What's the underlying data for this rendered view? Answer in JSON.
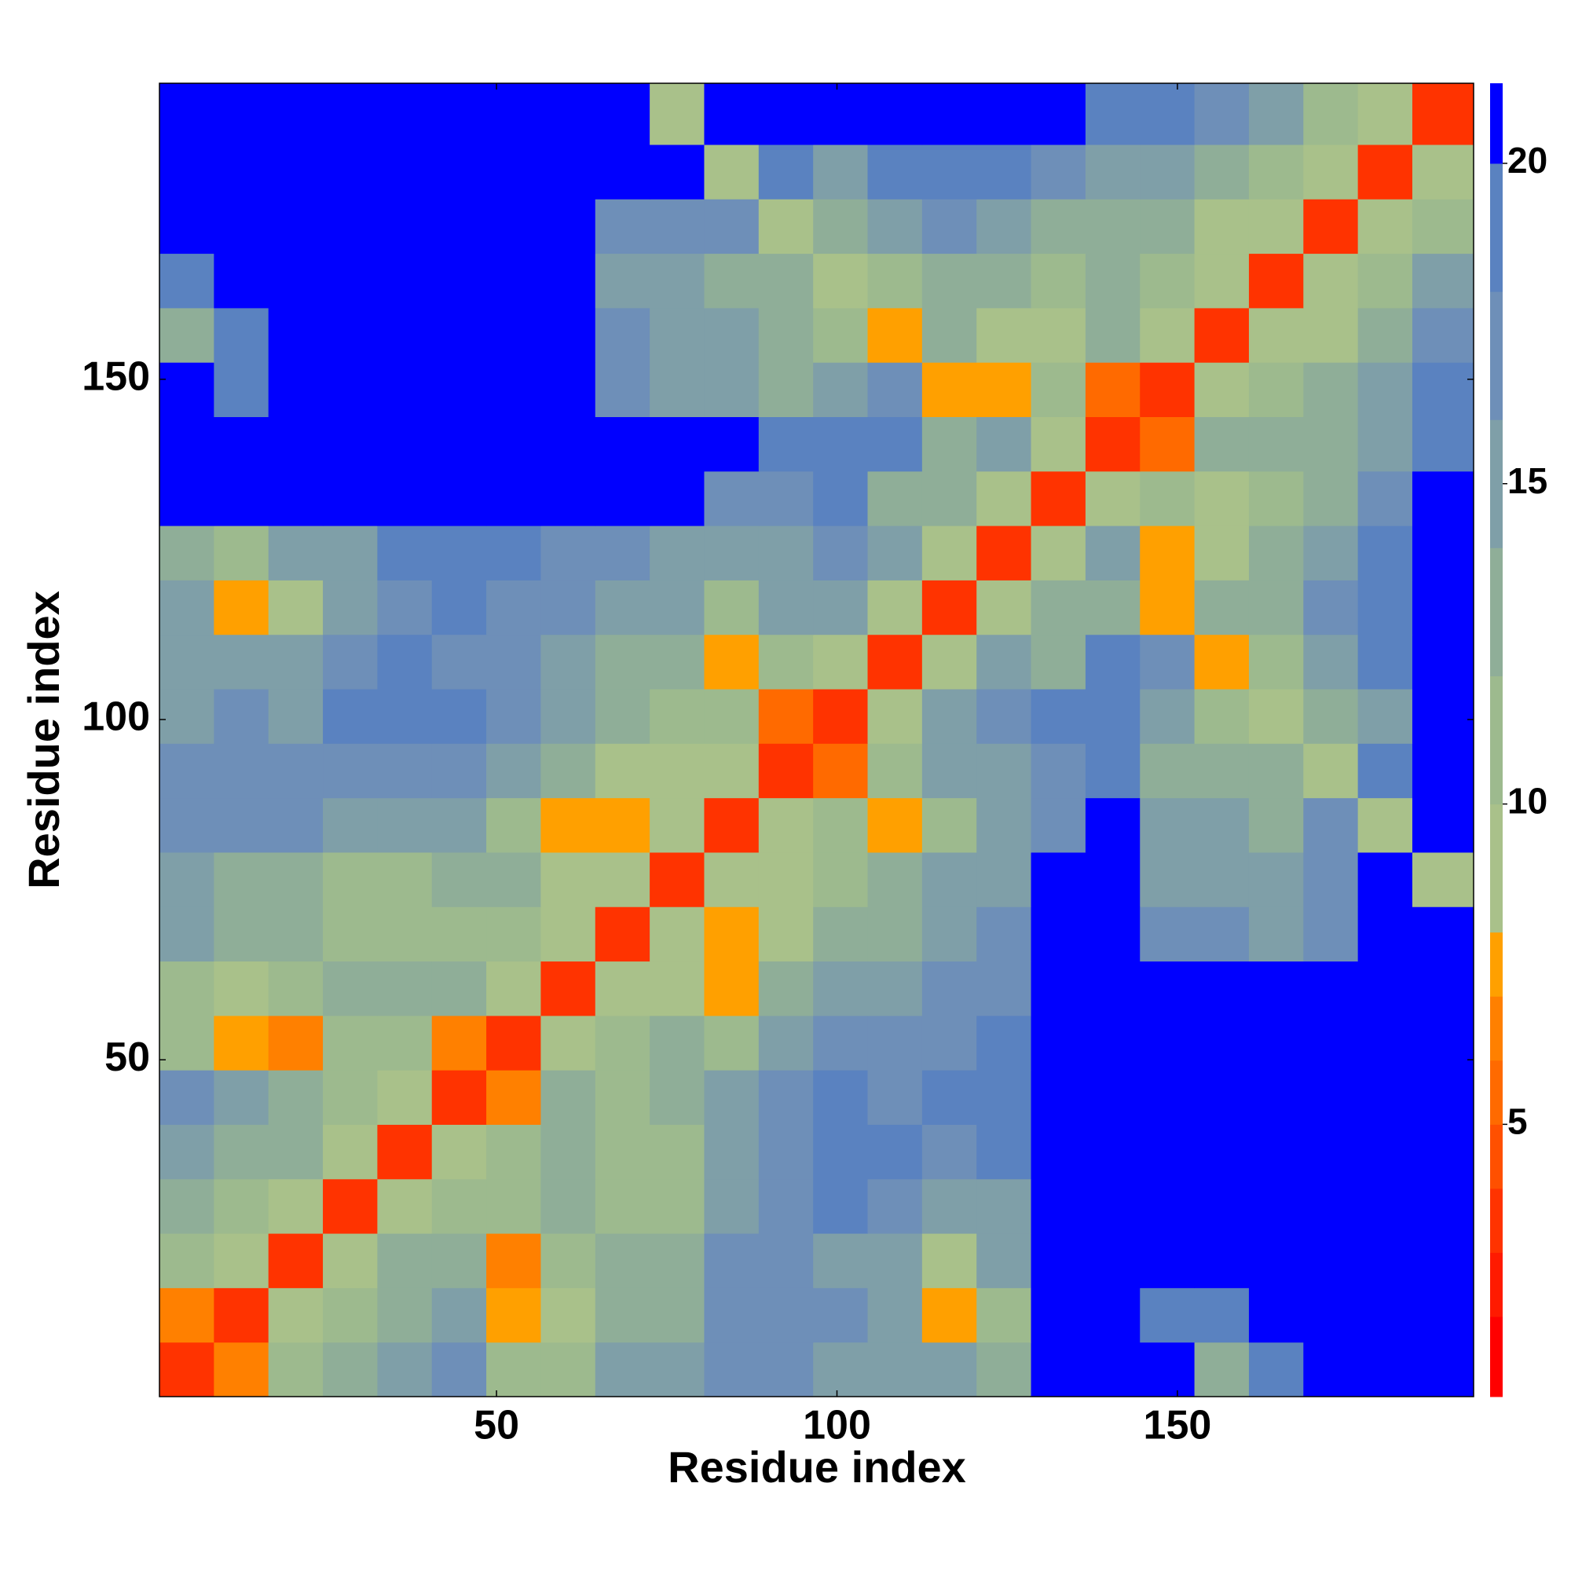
{
  "chart_data": {
    "type": "heatmap",
    "xlabel": "Residue index",
    "ylabel": "Residue index",
    "xlim": [
      0.5,
      193.5
    ],
    "ylim": [
      0.5,
      193.5
    ],
    "xticks": [
      50,
      100,
      150
    ],
    "yticks": [
      50,
      100,
      150
    ],
    "x_edges": [
      0.5,
      8.5,
      16.5,
      24.5,
      32.5,
      40.5,
      48.5,
      56.5,
      64.5,
      72.5,
      80.5,
      88.5,
      96.5,
      104.5,
      112.5,
      120.5,
      128.5,
      136.5,
      144.5,
      152.5,
      160.5,
      168.5,
      176.5,
      184.5,
      193.5
    ],
    "y_edges": [
      0.5,
      8.5,
      16.5,
      24.5,
      32.5,
      40.5,
      48.5,
      56.5,
      64.5,
      72.5,
      80.5,
      88.5,
      96.5,
      104.5,
      112.5,
      120.5,
      128.5,
      136.5,
      144.5,
      152.5,
      160.5,
      168.5,
      176.5,
      184.5,
      193.5
    ],
    "zlim": [
      0.75,
      21.25
    ],
    "zticks": [
      5,
      10,
      15,
      20
    ],
    "levels": [
      0.75,
      2,
      3,
      4,
      5,
      6,
      7,
      8,
      10,
      12,
      14,
      16,
      18,
      20,
      21.25
    ],
    "colors": [
      "#ff0000",
      "#ff1a00",
      "#ff3300",
      "#ff5000",
      "#ff6a00",
      "#ff8000",
      "#ffa000",
      "#a9c18a",
      "#9dba8e",
      "#8fae98",
      "#7f9fa8",
      "#6e8fb8",
      "#5a82c0",
      "#0000ff"
    ],
    "values": [
      [
        3,
        6,
        10,
        12,
        15,
        16,
        10,
        11,
        14,
        14,
        17,
        17,
        15,
        14,
        14,
        13,
        21,
        21,
        21,
        12,
        18,
        21,
        21,
        21
      ],
      [
        6,
        3,
        9,
        10,
        13,
        14,
        7,
        8,
        12,
        13,
        16,
        17,
        16,
        14,
        7,
        10,
        21,
        21,
        18,
        18,
        21,
        21,
        21,
        21
      ],
      [
        10,
        9,
        3,
        9,
        12,
        13,
        6,
        10,
        13,
        13,
        16,
        17,
        15,
        14,
        8,
        14,
        21,
        21,
        21,
        21,
        21,
        21,
        21,
        21
      ],
      [
        12,
        10,
        9,
        3,
        9,
        10,
        11,
        13,
        10,
        11,
        15,
        17,
        18,
        17,
        15,
        15,
        21,
        21,
        21,
        21,
        21,
        21,
        21,
        21
      ],
      [
        15,
        13,
        12,
        9,
        3,
        9,
        10,
        12,
        10,
        11,
        15,
        16,
        18,
        18,
        17,
        19,
        21,
        21,
        21,
        21,
        21,
        21,
        21,
        21
      ],
      [
        16,
        14,
        13,
        10,
        9,
        3,
        6,
        13,
        11,
        12,
        14,
        16,
        18,
        17,
        18,
        18,
        21,
        21,
        21,
        21,
        21,
        21,
        21,
        21
      ],
      [
        10,
        7,
        6,
        11,
        10,
        6,
        3,
        9,
        10,
        12,
        10,
        15,
        16,
        16,
        17,
        18,
        21,
        21,
        21,
        21,
        21,
        21,
        21,
        21
      ],
      [
        11,
        8,
        10,
        13,
        12,
        13,
        9,
        3,
        9,
        9,
        7,
        12,
        14,
        14,
        16,
        17,
        21,
        21,
        21,
        21,
        21,
        21,
        21,
        21
      ],
      [
        14,
        12,
        13,
        10,
        10,
        11,
        10,
        9,
        3,
        9,
        7,
        8,
        13,
        12,
        14,
        16,
        21,
        21,
        16,
        17,
        15,
        17,
        21,
        21
      ],
      [
        14,
        13,
        13,
        11,
        11,
        12,
        12,
        9,
        9,
        3,
        9,
        9,
        11,
        12,
        14,
        15,
        21,
        21,
        15,
        15,
        14,
        16,
        21,
        8
      ],
      [
        17,
        16,
        16,
        15,
        15,
        14,
        10,
        7,
        7,
        9,
        3,
        9,
        10,
        7,
        11,
        14,
        16,
        21,
        14,
        14,
        13,
        16,
        8,
        21
      ],
      [
        17,
        17,
        17,
        17,
        16,
        16,
        15,
        12,
        8,
        9,
        9,
        3,
        5,
        10,
        14,
        14,
        16,
        18,
        13,
        12,
        12,
        9,
        18,
        21
      ],
      [
        15,
        16,
        15,
        18,
        18,
        18,
        16,
        14,
        13,
        11,
        10,
        5,
        3,
        9,
        14,
        17,
        19,
        18,
        14,
        10,
        8,
        13,
        14,
        21
      ],
      [
        14,
        14,
        14,
        17,
        18,
        17,
        16,
        14,
        12,
        12,
        7,
        10,
        9,
        3,
        9,
        14,
        13,
        18,
        16,
        7,
        11,
        15,
        18,
        21
      ],
      [
        14,
        7,
        8,
        15,
        17,
        18,
        17,
        16,
        14,
        14,
        11,
        14,
        14,
        9,
        3,
        9,
        12,
        13,
        7,
        12,
        13,
        16,
        19,
        21
      ],
      [
        13,
        10,
        14,
        15,
        19,
        18,
        18,
        17,
        16,
        15,
        14,
        14,
        17,
        14,
        9,
        3,
        9,
        14,
        7,
        8,
        12,
        14,
        19,
        21
      ],
      [
        21,
        21,
        21,
        21,
        21,
        21,
        21,
        21,
        21,
        21,
        16,
        16,
        19,
        13,
        12,
        9,
        3,
        9,
        10,
        8,
        10,
        13,
        17,
        21
      ],
      [
        21,
        21,
        21,
        21,
        21,
        21,
        21,
        21,
        21,
        21,
        21,
        18,
        18,
        18,
        13,
        14,
        9,
        3,
        5,
        12,
        12,
        12,
        15,
        19
      ],
      [
        21,
        18,
        21,
        21,
        21,
        21,
        21,
        21,
        16,
        15,
        14,
        13,
        14,
        16,
        7,
        7,
        10,
        5,
        3,
        9,
        11,
        12,
        15,
        18
      ],
      [
        12,
        18,
        21,
        21,
        21,
        21,
        21,
        21,
        17,
        15,
        14,
        12,
        10,
        7,
        12,
        8,
        8,
        12,
        9,
        3,
        9,
        9,
        12,
        17
      ],
      [
        18,
        21,
        21,
        21,
        21,
        21,
        21,
        21,
        15,
        14,
        13,
        12,
        8,
        11,
        13,
        12,
        10,
        12,
        11,
        9,
        3,
        9,
        10,
        14
      ],
      [
        21,
        21,
        21,
        21,
        21,
        21,
        21,
        21,
        17,
        16,
        16,
        9,
        13,
        15,
        16,
        14,
        13,
        12,
        12,
        9,
        9,
        3,
        9,
        10
      ],
      [
        21,
        21,
        21,
        21,
        21,
        21,
        21,
        21,
        21,
        21,
        8,
        18,
        14,
        18,
        19,
        19,
        17,
        15,
        15,
        12,
        10,
        9,
        3,
        9
      ],
      [
        21,
        21,
        21,
        21,
        21,
        21,
        21,
        21,
        21,
        8,
        21,
        21,
        21,
        21,
        21,
        21,
        21,
        19,
        18,
        17,
        14,
        10,
        9,
        3
      ]
    ]
  }
}
